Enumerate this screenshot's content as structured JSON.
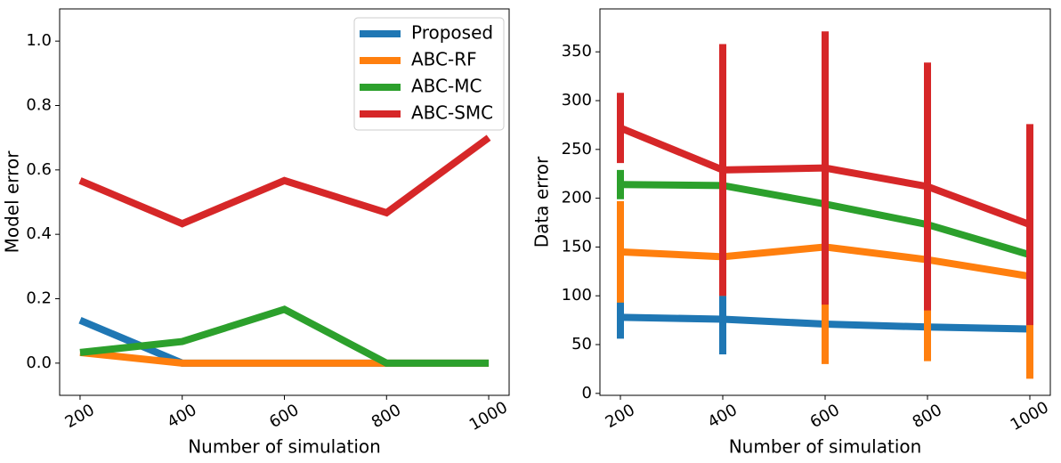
{
  "chart_data": [
    {
      "type": "line",
      "xlabel": "Number of simulation",
      "ylabel": "Model error",
      "x": [
        200,
        400,
        600,
        800,
        1000
      ],
      "xlim": [
        160,
        1040
      ],
      "xticks": [
        200,
        400,
        600,
        800,
        1000
      ],
      "ylim": [
        -0.1,
        1.1
      ],
      "yticks": [
        {
          "value": 0,
          "label": "0.0"
        },
        0.2,
        0.4,
        0.6,
        0.8,
        {
          "value": 1,
          "label": "1.0"
        }
      ],
      "legend": "upper right",
      "series": [
        {
          "name": "Proposed",
          "color": "#1f77b4",
          "values": [
            0.133,
            0,
            0,
            0,
            0
          ]
        },
        {
          "name": "ABC-RF",
          "color": "#ff7f0e",
          "values": [
            0.033,
            0,
            0,
            0,
            0
          ]
        },
        {
          "name": "ABC-MC",
          "color": "#2ca02c",
          "values": [
            0.033,
            0.067,
            0.167,
            0,
            0
          ]
        },
        {
          "name": "ABC-SMC",
          "color": "#d62728",
          "values": [
            0.567,
            0.433,
            0.567,
            0.467,
            0.7
          ]
        }
      ]
    },
    {
      "type": "errorbar",
      "xlabel": "Number of simulation",
      "ylabel": "Data error",
      "x": [
        200,
        400,
        600,
        800,
        1000
      ],
      "xlim": [
        160,
        1040
      ],
      "xticks": [
        200,
        400,
        600,
        800,
        1000
      ],
      "ylim": [
        -2,
        394
      ],
      "yticks": [
        0,
        50,
        100,
        150,
        200,
        250,
        300,
        350
      ],
      "series": [
        {
          "color": "#1f77b4",
          "values": [
            78,
            76,
            71,
            68,
            66
          ],
          "errors": [
            22,
            36,
            20,
            18,
            18
          ]
        },
        {
          "color": "#ff7f0e",
          "values": [
            145,
            140,
            150,
            137,
            120
          ],
          "errors": [
            52,
            40,
            120,
            104,
            105
          ]
        },
        {
          "color": "#2ca02c",
          "values": [
            214,
            213,
            194,
            173,
            142
          ],
          "errors": [
            15,
            15,
            15,
            15,
            15
          ]
        },
        {
          "color": "#d62728",
          "values": [
            272,
            229,
            231,
            212,
            173
          ],
          "errors": [
            36,
            129,
            140,
            127,
            103
          ]
        }
      ]
    }
  ]
}
